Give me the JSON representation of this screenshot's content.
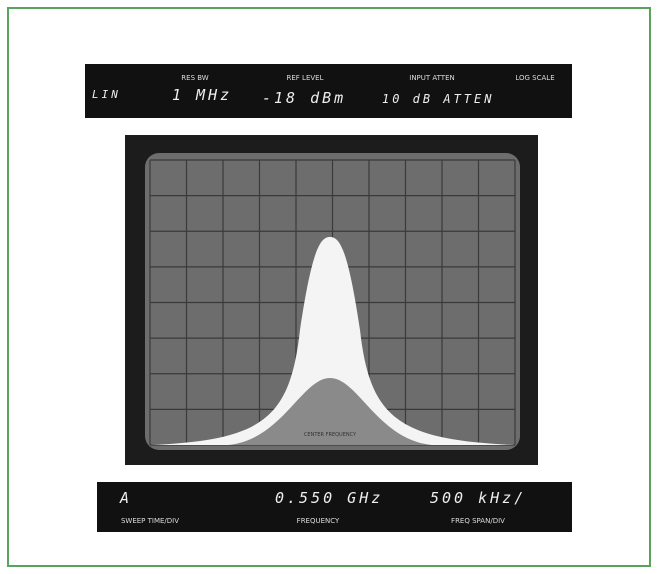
{
  "top_panel": {
    "mode": "LIN",
    "res_bw_label": "RES BW",
    "res_bw": "1 MHz",
    "ref_level_label": "REF LEVEL",
    "ref_level": "-18 dBm",
    "input_atten_label": "INPUT ATTEN",
    "input_atten": "10 dB ATTEN",
    "scale_label": "LOG SCALE"
  },
  "screen": {
    "marker_label": "CENTER FREQUENCY"
  },
  "bottom_panel": {
    "sweep_time": "A",
    "sweep_time_label": "SWEEP TIME/DIV",
    "frequency": "0.550 GHz",
    "frequency_label": "FREQUENCY",
    "freq_span": "500 kHz/",
    "freq_span_label": "FREQ SPAN/DIV"
  }
}
